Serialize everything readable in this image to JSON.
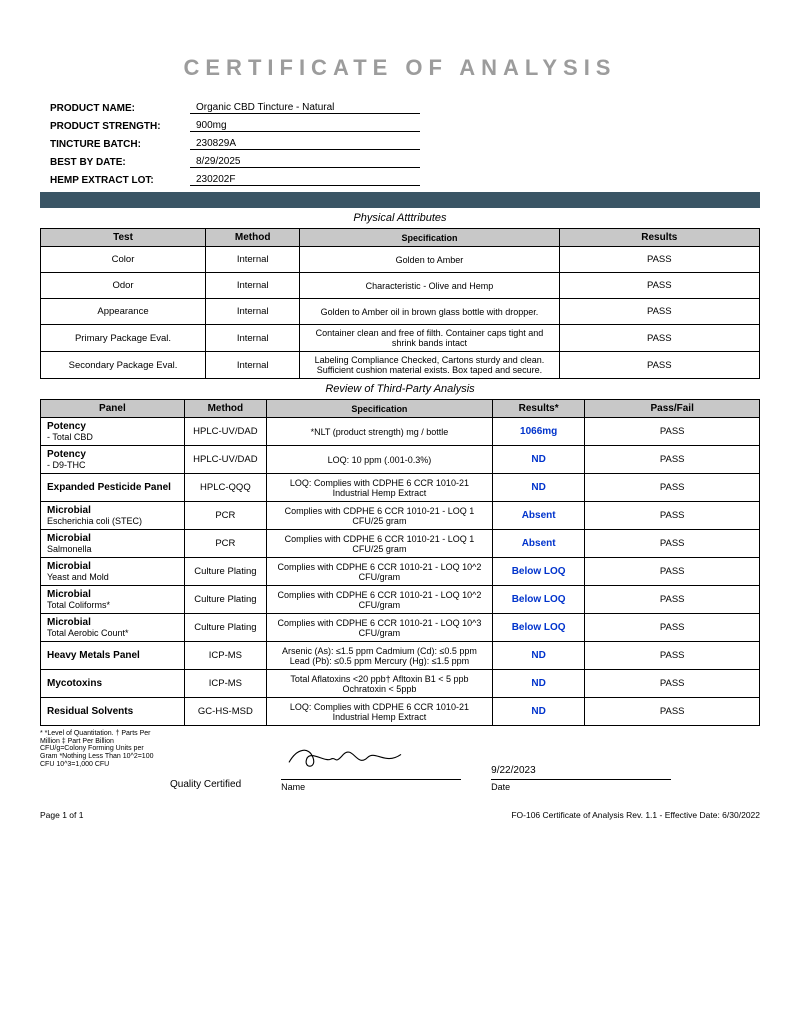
{
  "title": "CERTIFICATE OF ANALYSIS",
  "product": {
    "nameLabel": "PRODUCT NAME:",
    "name": "Organic CBD Tincture - Natural",
    "strengthLabel": "PRODUCT STRENGTH:",
    "strength": "900mg",
    "batchLabel": "TINCTURE BATCH:",
    "batch": "230829A",
    "bestByLabel": "BEST BY DATE:",
    "bestBy": "8/29/2025",
    "lotLabel": "HEMP EXTRACT LOT:",
    "lot": "230202F"
  },
  "sectionTitles": {
    "physical": "Physical Atttributes",
    "review": "Review of Third-Party Analysis"
  },
  "tbl1": {
    "headers": [
      "Test",
      "Method",
      "Specification",
      "Results"
    ],
    "rows": [
      {
        "test": "Color",
        "method": "Internal",
        "spec": "Golden to Amber",
        "result": "PASS"
      },
      {
        "test": "Odor",
        "method": "Internal",
        "spec": "Characteristic - Olive and Hemp",
        "result": "PASS"
      },
      {
        "test": "Appearance",
        "method": "Internal",
        "spec": "Golden to Amber oil in brown glass bottle with dropper.",
        "result": "PASS"
      },
      {
        "test": "Primary Package Eval.",
        "method": "Internal",
        "spec": "Container clean and free of filth. Container caps tight and shrink bands intact",
        "result": "PASS"
      },
      {
        "test": "Secondary Package Eval.",
        "method": "Internal",
        "spec": "Labeling Compliance Checked, Cartons sturdy and clean. Sufficient cushion material exists. Box taped and secure.",
        "result": "PASS"
      }
    ]
  },
  "tbl2": {
    "headers": [
      "Panel",
      "Method",
      "Specification",
      "Results*",
      "Pass/Fail"
    ],
    "rows": [
      {
        "panelBold": "Potency",
        "panelRest": " - Total CBD",
        "method": "HPLC-UV/DAD",
        "spec": "*NLT (product strength) mg / bottle",
        "result": "1066mg",
        "pass": "PASS"
      },
      {
        "panelBold": "Potency",
        "panelRest": " - D9-THC",
        "method": "HPLC-UV/DAD",
        "spec": "LOQ: 10 ppm (.001-0.3%)",
        "result": "ND",
        "pass": "PASS"
      },
      {
        "panelBold": "Expanded Pesticide Panel",
        "panelRest": "",
        "method": "HPLC-QQQ",
        "spec": "LOQ: Complies with CDPHE 6 CCR 1010-21 Industrial Hemp Extract",
        "result": "ND",
        "pass": "PASS"
      },
      {
        "panelBold": "Microbial",
        "panelRest": " Escherichia coli (STEC)",
        "method": "PCR",
        "spec": "Complies with CDPHE 6 CCR 1010-21 - LOQ 1 CFU/25 gram",
        "result": "Absent",
        "pass": "PASS"
      },
      {
        "panelBold": "Microbial",
        "panelRest": " Salmonella",
        "method": "PCR",
        "spec": "Complies with CDPHE 6 CCR 1010-21 - LOQ 1 CFU/25 gram",
        "result": "Absent",
        "pass": "PASS"
      },
      {
        "panelBold": "Microbial",
        "panelRest": " Yeast and Mold",
        "method": "Culture Plating",
        "spec": "Complies with CDPHE 6 CCR 1010-21 - LOQ 10^2 CFU/gram",
        "result": "Below LOQ",
        "pass": "PASS"
      },
      {
        "panelBold": "Microbial",
        "panelRest": " Total Coliforms*",
        "method": "Culture Plating",
        "spec": "Complies with CDPHE 6 CCR 1010-21 - LOQ 10^2 CFU/gram",
        "result": "Below LOQ",
        "pass": "PASS"
      },
      {
        "panelBold": "Microbial",
        "panelRest": " Total Aerobic Count*",
        "method": "Culture Plating",
        "spec": "Complies with CDPHE 6 CCR 1010-21 - LOQ 10^3 CFU/gram",
        "result": "Below LOQ",
        "pass": "PASS"
      },
      {
        "panelBold": "Heavy Metals Panel",
        "panelRest": "",
        "method": "ICP-MS",
        "spec": "Arsenic (As): ≤1.5 ppm Cadmium (Cd): ≤0.5 ppm Lead (Pb): ≤0.5 ppm Mercury (Hg): ≤1.5 ppm",
        "result": "ND",
        "pass": "PASS"
      },
      {
        "panelBold": "Mycotoxins",
        "panelRest": "",
        "method": "ICP-MS",
        "spec": "Total Aflatoxins <20 ppb† Afltoxin B1 < 5 ppb Ochratoxin < 5ppb",
        "result": "ND",
        "pass": "PASS"
      },
      {
        "panelBold": "Residual Solvents",
        "panelRest": "",
        "method": "GC-HS-MSD",
        "spec": "LOQ: Complies with CDPHE 6 CCR 1010-21 Industrial Hemp Extract",
        "result": "ND",
        "pass": "PASS"
      }
    ]
  },
  "footnotes": "* *Level of Quantitation. † Parts Per Million ‡ Part Per Billion CFU/g=Colony Forming Units per Gram *Nothing Less Than 10^2=100 CFU 10^3=1,000 CFU",
  "signature": {
    "qcLabel": "Quality Certified",
    "nameLabel": "Name",
    "dateLabel": "Date",
    "date": "9/22/2023"
  },
  "footer": {
    "page": "Page 1 of 1",
    "rev": "FO-106 Certificate of Analysis Rev. 1.1 - Effective Date: 6/30/2022"
  },
  "colors": {
    "titleGrey": "#9c9c9c",
    "bar": "#3a5565",
    "headerBg": "#c8c8c8",
    "resultBlue": "#0033cc"
  }
}
